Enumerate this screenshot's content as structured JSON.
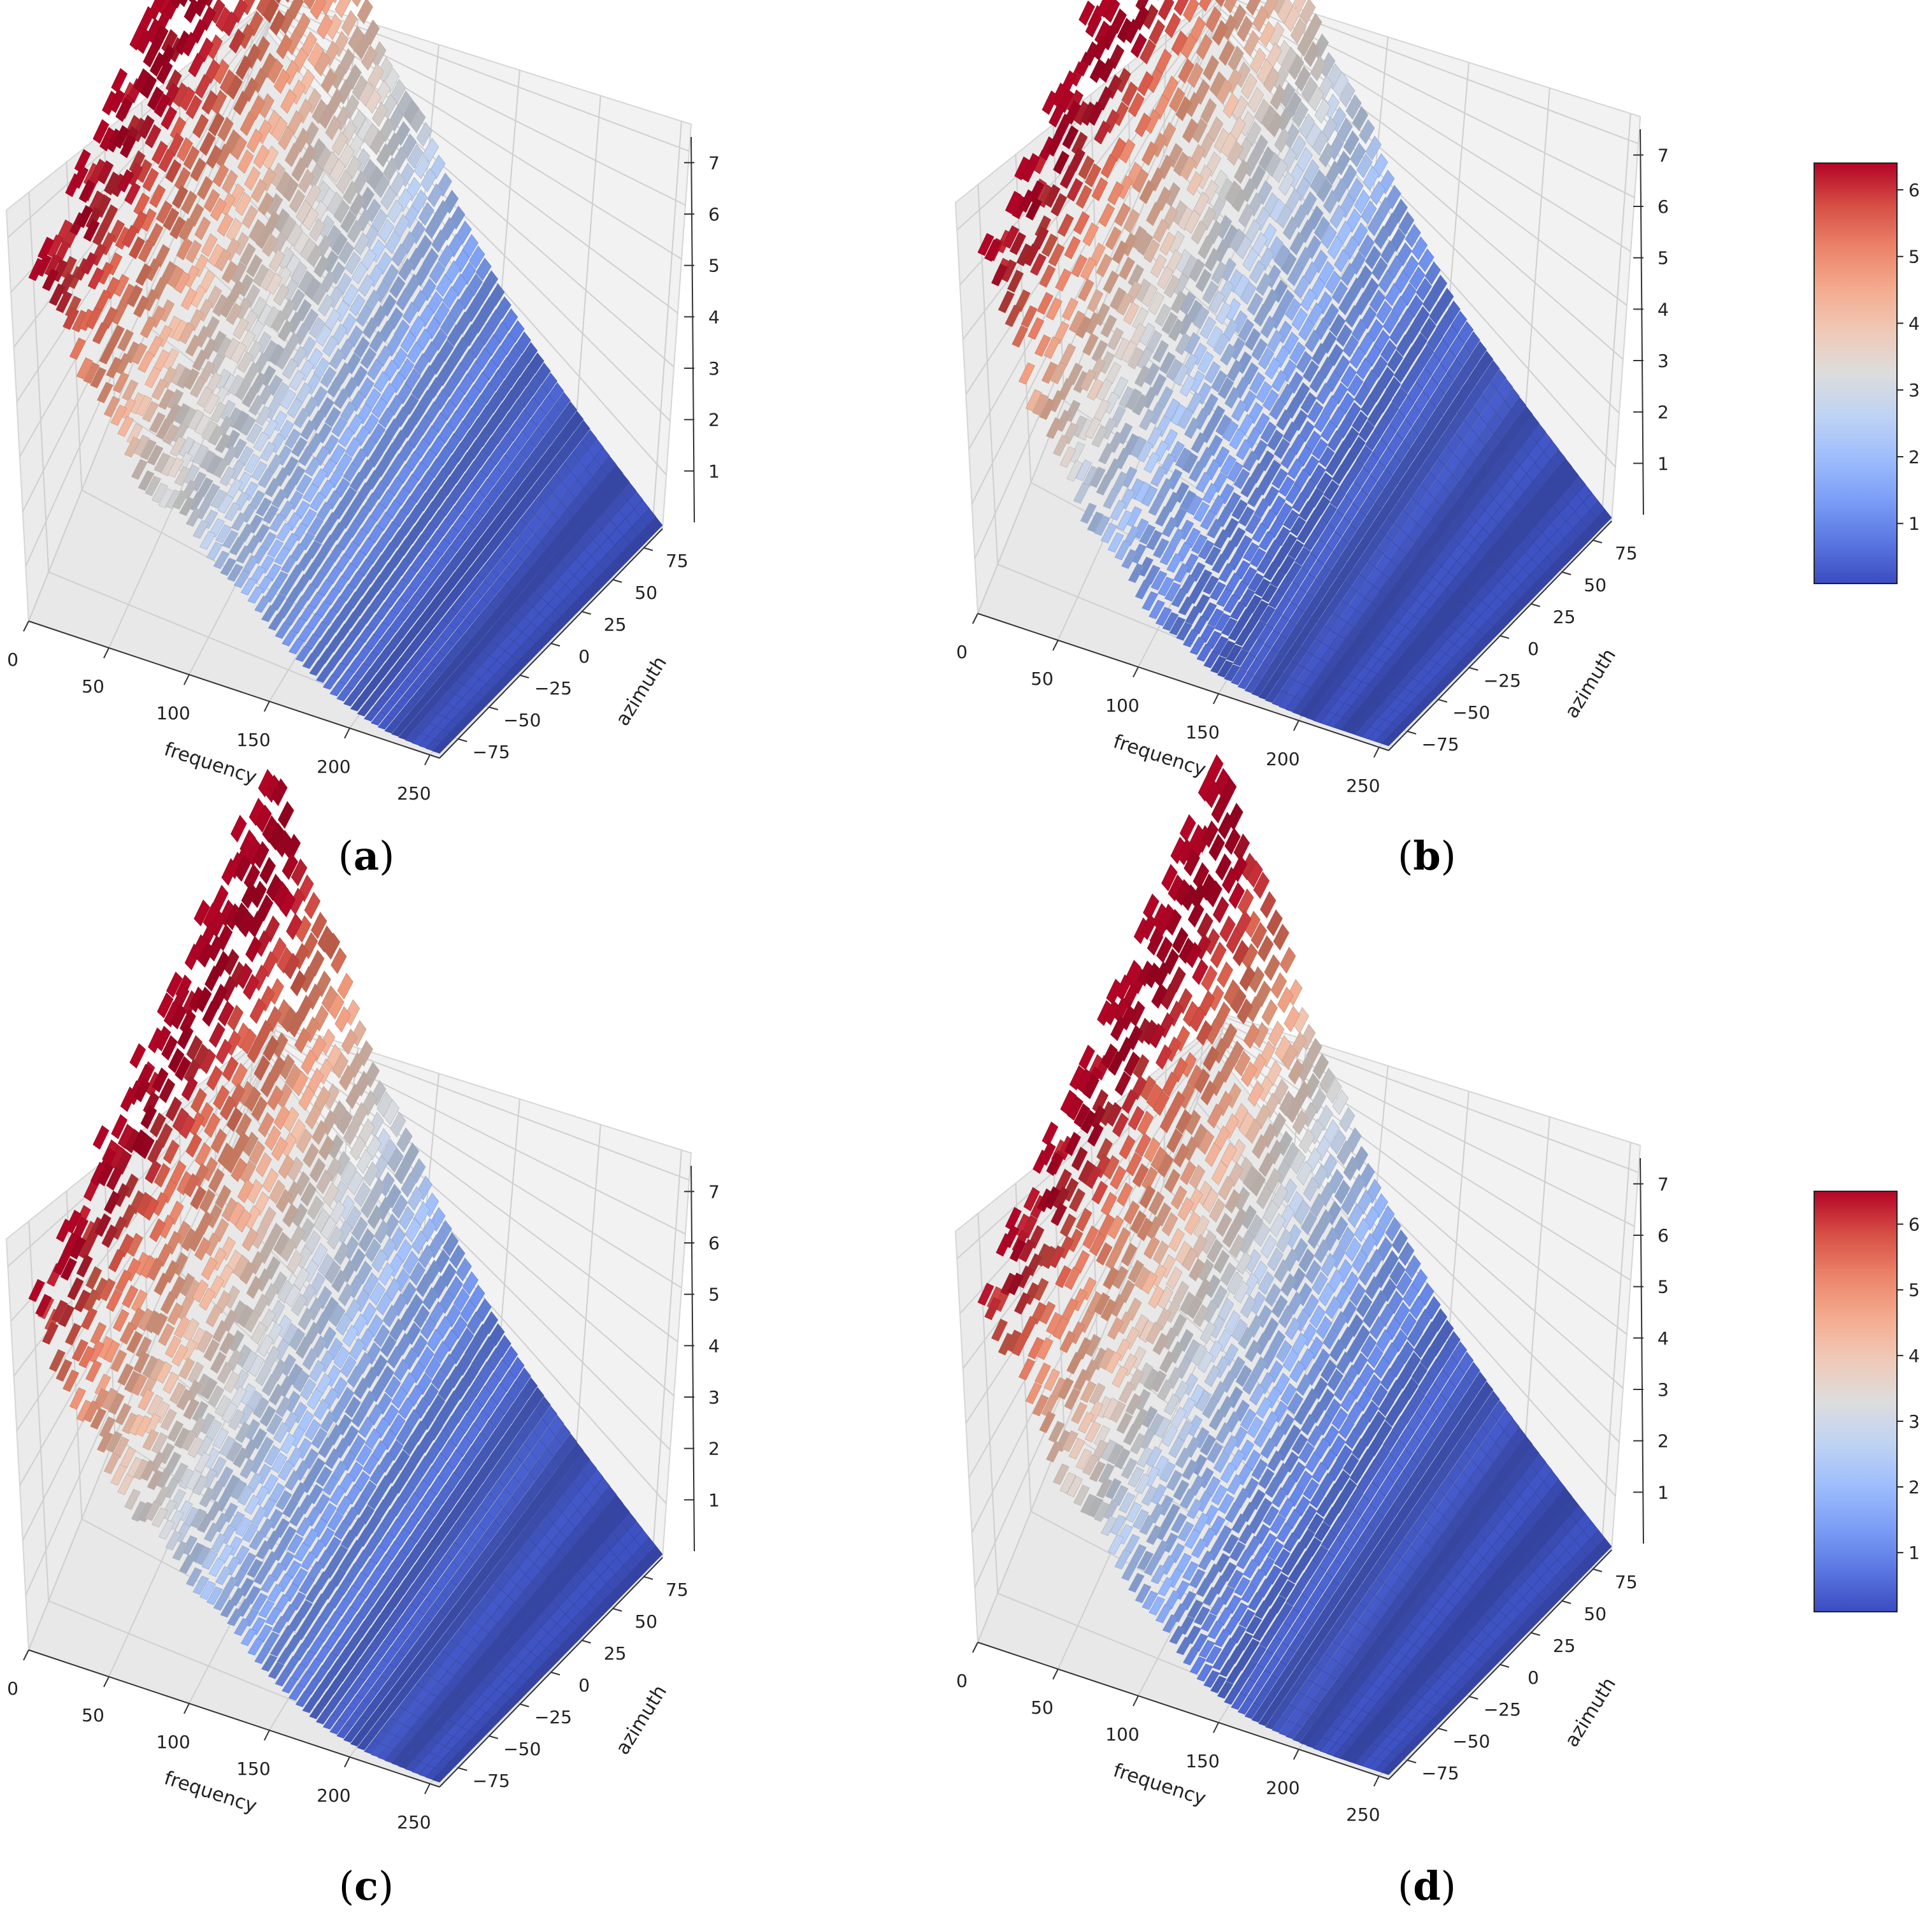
{
  "chart_data": [
    {
      "type": "surface3d",
      "panel": "a",
      "caption_letter": "a",
      "xlabel": "frequency",
      "ylabel": "azimuth",
      "x_ticks": [
        0,
        50,
        100,
        150,
        200,
        250
      ],
      "y_ticks": [
        -75,
        -50,
        -25,
        0,
        25,
        50,
        75
      ],
      "z_ticks": [
        1,
        2,
        3,
        4,
        5,
        6,
        7
      ],
      "xlim": [
        0,
        256
      ],
      "ylim": [
        -90,
        90
      ],
      "zlim": [
        0,
        7.5
      ],
      "front_profile": [
        6.2,
        6.1,
        5.8,
        5.3,
        4.6,
        4.0,
        3.6,
        3.3,
        3.1,
        2.9,
        2.6,
        2.3,
        2.0,
        1.7,
        1.4,
        1.1,
        0.85,
        0.6,
        0.45,
        0.3,
        0.2,
        0.15,
        0.12,
        0.1
      ],
      "back_profile": [
        7.2,
        7.1,
        6.9,
        6.0,
        5.2,
        4.5,
        3.8,
        3.4,
        3.2,
        2.9,
        2.5,
        2.0,
        1.5,
        1.2,
        0.9,
        0.65,
        0.5,
        0.38,
        0.3,
        0.22,
        0.18,
        0.15,
        0.12,
        0.1
      ],
      "colormap": "coolwarm",
      "colorbar": false
    },
    {
      "type": "surface3d",
      "panel": "b",
      "caption_letter": "b",
      "xlabel": "frequency",
      "ylabel": "azimuth",
      "x_ticks": [
        0,
        50,
        100,
        150,
        200,
        250
      ],
      "y_ticks": [
        -75,
        -50,
        -25,
        0,
        25,
        50,
        75
      ],
      "z_ticks": [
        1,
        2,
        3,
        4,
        5,
        6,
        7
      ],
      "xlim": [
        0,
        256
      ],
      "ylim": [
        -90,
        90
      ],
      "zlim": [
        0,
        7.5
      ],
      "front_profile": [
        6.3,
        6.2,
        5.6,
        4.3,
        3.6,
        3.2,
        2.7,
        2.2,
        1.8,
        1.4,
        1.1,
        0.85,
        0.6,
        0.45,
        0.35,
        0.25,
        0.2,
        0.15,
        0.12,
        0.1,
        0.1,
        0.1,
        0.1,
        0.1
      ],
      "back_profile": [
        7.3,
        7.2,
        6.5,
        5.3,
        4.4,
        3.7,
        3.4,
        3.1,
        2.8,
        2.4,
        2.0,
        1.6,
        1.2,
        0.9,
        0.6,
        0.45,
        0.35,
        0.28,
        0.22,
        0.18,
        0.15,
        0.12,
        0.1,
        0.1
      ],
      "colormap": "coolwarm",
      "colorbar": true,
      "colorbar_ticks": [
        1,
        2,
        3,
        4,
        5,
        6
      ],
      "colorbar_range": [
        0.1,
        6.4
      ]
    },
    {
      "type": "surface3d",
      "panel": "c",
      "caption_letter": "c",
      "xlabel": "frequency",
      "ylabel": "azimuth",
      "x_ticks": [
        0,
        50,
        100,
        150,
        200,
        250
      ],
      "y_ticks": [
        -75,
        -50,
        -25,
        0,
        25,
        50,
        75
      ],
      "z_ticks": [
        1,
        2,
        3,
        4,
        5,
        6,
        7
      ],
      "xlim": [
        0,
        256
      ],
      "ylim": [
        -90,
        90
      ],
      "zlim": [
        0,
        7.5
      ],
      "front_profile": [
        6.2,
        6.1,
        5.3,
        4.6,
        4.1,
        3.8,
        3.4,
        3.1,
        2.8,
        2.5,
        2.2,
        1.9,
        1.6,
        1.3,
        1.0,
        0.75,
        0.55,
        0.4,
        0.3,
        0.22,
        0.18,
        0.15,
        0.12,
        0.1
      ],
      "back_profile": [
        7.2,
        7.1,
        6.6,
        5.8,
        5.2,
        4.5,
        3.8,
        3.2,
        2.8,
        2.4,
        2.0,
        1.6,
        1.2,
        0.9,
        0.65,
        0.45,
        0.35,
        0.28,
        0.22,
        0.18,
        0.15,
        0.12,
        0.1,
        0.1
      ],
      "colormap": "coolwarm",
      "colorbar": false
    },
    {
      "type": "surface3d",
      "panel": "d",
      "caption_letter": "d",
      "xlabel": "frequency",
      "ylabel": "azimuth",
      "x_ticks": [
        0,
        50,
        100,
        150,
        200,
        250
      ],
      "y_ticks": [
        -75,
        -50,
        -25,
        0,
        25,
        50,
        75
      ],
      "z_ticks": [
        1,
        2,
        3,
        4,
        5,
        6,
        7
      ],
      "xlim": [
        0,
        256
      ],
      "ylim": [
        -90,
        90
      ],
      "zlim": [
        0,
        7.5
      ],
      "front_profile": [
        6.3,
        6.2,
        5.6,
        4.6,
        4.0,
        3.6,
        3.2,
        2.8,
        2.4,
        2.0,
        1.6,
        1.2,
        0.9,
        0.65,
        0.45,
        0.32,
        0.25,
        0.2,
        0.15,
        0.12,
        0.1,
        0.1,
        0.1,
        0.1
      ],
      "back_profile": [
        7.3,
        7.2,
        6.6,
        5.9,
        5.2,
        4.3,
        3.7,
        3.2,
        2.7,
        2.2,
        1.8,
        1.4,
        1.1,
        0.8,
        0.55,
        0.4,
        0.3,
        0.22,
        0.18,
        0.15,
        0.12,
        0.1,
        0.1,
        0.1
      ],
      "colormap": "coolwarm",
      "colorbar": true,
      "colorbar_ticks": [
        1,
        2,
        3,
        4,
        5,
        6
      ],
      "colorbar_range": [
        0.1,
        6.5
      ]
    }
  ],
  "colors": {
    "pane": "#f2f2f2",
    "pane_edge": "#d6d6d6",
    "grid": "#cfcfcf",
    "axis": "#333333"
  }
}
